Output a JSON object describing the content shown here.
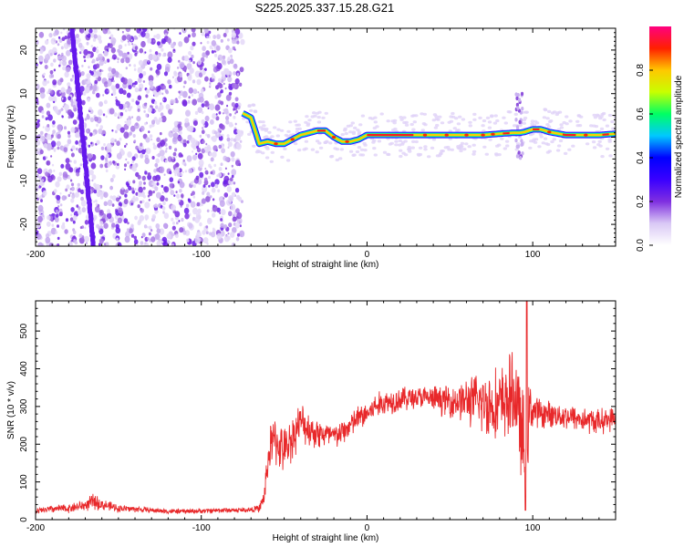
{
  "title": "S225.2025.337.15.28.G21",
  "chart_data": [
    {
      "type": "heatmap",
      "name": "spectrogram",
      "xlabel": "Height of straight line (km)",
      "ylabel": "Frequency (Hz)",
      "xlim": [
        -200,
        150
      ],
      "ylim": [
        -25,
        25
      ],
      "xticks": [
        -200,
        -100,
        0,
        100
      ],
      "yticks": [
        -20,
        -10,
        0,
        10,
        20
      ],
      "noise_region_x": [
        -200,
        -75
      ],
      "diagonal_track": {
        "x_start": -165,
        "x_end": -178,
        "y_start": -25,
        "y_end": 25
      },
      "ridge": {
        "x": [
          -75,
          -70,
          -65,
          -60,
          -55,
          -50,
          -45,
          -40,
          -35,
          -30,
          -25,
          -20,
          -15,
          -10,
          -5,
          0,
          10,
          20,
          30,
          40,
          50,
          60,
          70,
          80,
          88,
          92,
          95,
          100,
          105,
          110,
          120,
          130,
          140,
          150
        ],
        "frequency": [
          5.5,
          4.5,
          -1.5,
          -1.0,
          -1.5,
          -1.5,
          -0.5,
          0.5,
          1.0,
          1.5,
          1.5,
          0.0,
          -1.0,
          -1.0,
          -0.5,
          0.5,
          0.5,
          0.5,
          0.5,
          0.5,
          0.5,
          0.5,
          0.5,
          0.8,
          1.0,
          1.0,
          1.2,
          1.8,
          1.8,
          1.2,
          0.5,
          0.5,
          0.5,
          0.8
        ]
      },
      "colorbar": {
        "label": "Normalized spectral amplitude",
        "ticks": [
          "0.0",
          "0.2",
          "0.4",
          "0.6",
          "0.8"
        ],
        "range": [
          0,
          1
        ],
        "colors": [
          "#ffffff",
          "#d9c8f5",
          "#7f2fe0",
          "#3a00ff",
          "#0000ff",
          "#00c8ff",
          "#00ff64",
          "#c8ff00",
          "#ffc800",
          "#ff2000",
          "#ff0080"
        ]
      }
    },
    {
      "type": "line",
      "name": "snr",
      "xlabel": "Height of straight line (km)",
      "ylabel": "SNR (10 * v/v)",
      "xlim": [
        -200,
        150
      ],
      "ylim": [
        0,
        580
      ],
      "xticks": [
        -200,
        -100,
        0,
        100
      ],
      "yticks": [
        0,
        100,
        200,
        300,
        400,
        500
      ],
      "color": "#e8282a",
      "series": [
        {
          "name": "SNR",
          "x": [
            -200,
            -190,
            -180,
            -170,
            -165,
            -160,
            -150,
            -140,
            -130,
            -120,
            -110,
            -100,
            -90,
            -80,
            -70,
            -65,
            -62,
            -60,
            -58,
            -55,
            -50,
            -45,
            -40,
            -35,
            -30,
            -25,
            -20,
            -15,
            -10,
            -5,
            0,
            5,
            10,
            20,
            30,
            40,
            50,
            60,
            70,
            80,
            85,
            90,
            94,
            96,
            98,
            100,
            105,
            110,
            120,
            130,
            140,
            150
          ],
          "y": [
            22,
            28,
            30,
            38,
            48,
            40,
            30,
            28,
            25,
            22,
            22,
            23,
            25,
            25,
            26,
            30,
            60,
            150,
            200,
            210,
            180,
            220,
            260,
            240,
            230,
            225,
            220,
            230,
            250,
            270,
            280,
            300,
            310,
            320,
            325,
            320,
            315,
            315,
            310,
            300,
            320,
            330,
            200,
            150,
            300,
            290,
            280,
            280,
            275,
            265,
            260,
            270
          ],
          "spread": [
            10,
            12,
            14,
            18,
            25,
            18,
            12,
            10,
            8,
            8,
            8,
            8,
            8,
            8,
            8,
            12,
            30,
            60,
            70,
            80,
            70,
            70,
            60,
            55,
            50,
            45,
            40,
            40,
            40,
            40,
            40,
            40,
            40,
            40,
            35,
            40,
            50,
            70,
            100,
            120,
            130,
            140,
            160,
            150,
            80,
            60,
            45,
            40,
            40,
            40,
            40,
            35
          ]
        }
      ]
    }
  ]
}
